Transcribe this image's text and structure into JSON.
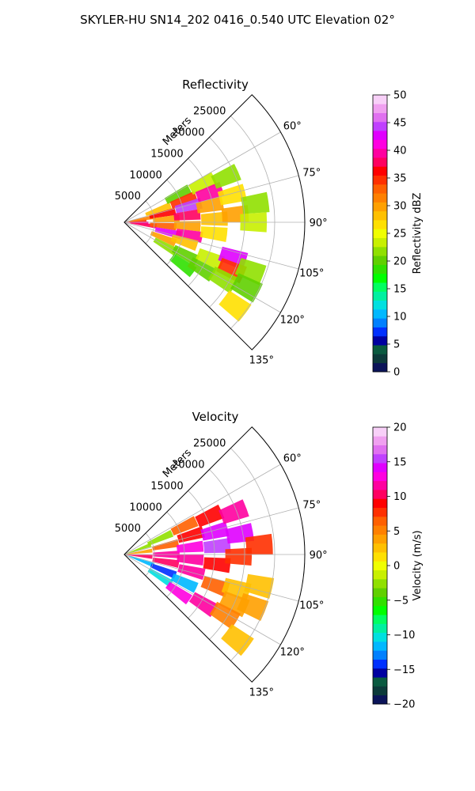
{
  "figure": {
    "title": "SKYLER-HU  SN14_202  0416_0.540 UTC Elevation 02°"
  },
  "chart_data": [
    {
      "type": "heatmap",
      "projection": "polar-sector",
      "title": "Reflectivity",
      "radial_axis_label": "Meters",
      "radial_range": [
        0,
        30000
      ],
      "radial_ticks": [
        5000,
        10000,
        15000,
        20000,
        25000
      ],
      "radial_tick_labels": [
        "5000",
        "10000",
        "15000",
        "20000",
        "25000"
      ],
      "angle_range_deg": [
        45,
        135
      ],
      "angle_ticks_deg": [
        60,
        75,
        90,
        105,
        120,
        135
      ],
      "angle_tick_labels": [
        "60°",
        "75°",
        "90°",
        "105°",
        "120°",
        "135°"
      ],
      "grid": true,
      "colorbar": {
        "label": "Reflectivity dBZ",
        "range": [
          0,
          50
        ],
        "ticks": [
          0,
          5,
          10,
          15,
          20,
          25,
          30,
          35,
          40,
          45,
          50
        ],
        "tick_labels": [
          "0",
          "5",
          "10",
          "15",
          "20",
          "25",
          "30",
          "35",
          "40",
          "45",
          "50"
        ],
        "colors": [
          "#0b1459",
          "#0c3a3a",
          "#0a5a40",
          "#0000a0",
          "#0030ff",
          "#0080ff",
          "#00b8ff",
          "#00e0e0",
          "#00f0a0",
          "#00ff60",
          "#00ff00",
          "#30e000",
          "#60d000",
          "#90e000",
          "#c8f000",
          "#f0ff00",
          "#ffe000",
          "#ffc000",
          "#ffa000",
          "#ff8000",
          "#ff6000",
          "#ff3000",
          "#ff0000",
          "#ff0060",
          "#ff00a0",
          "#ff00e0",
          "#e000ff",
          "#c040ff",
          "#e070f0",
          "#f0a0f0",
          "#f8d0f8"
        ]
      },
      "cells": [
        {
          "angle": 86,
          "range": 1500,
          "value": 35
        },
        {
          "angle": 92,
          "range": 1800,
          "value": 40
        },
        {
          "angle": 80,
          "range": 3000,
          "value": 32
        },
        {
          "angle": 97,
          "range": 3200,
          "value": 38
        },
        {
          "angle": 70,
          "range": 6000,
          "value": 28
        },
        {
          "angle": 78,
          "range": 6500,
          "value": 36
        },
        {
          "angle": 86,
          "range": 7000,
          "value": 30
        },
        {
          "angle": 95,
          "range": 6500,
          "value": 33
        },
        {
          "angle": 103,
          "range": 7500,
          "value": 42
        },
        {
          "angle": 112,
          "range": 7000,
          "value": 30
        },
        {
          "angle": 120,
          "range": 8000,
          "value": 22
        },
        {
          "angle": 63,
          "range": 10000,
          "value": 20
        },
        {
          "angle": 70,
          "range": 10500,
          "value": 34
        },
        {
          "angle": 76,
          "range": 11000,
          "value": 44
        },
        {
          "angle": 84,
          "range": 10500,
          "value": 38
        },
        {
          "angle": 93,
          "range": 10500,
          "value": 30
        },
        {
          "angle": 101,
          "range": 11000,
          "value": 40
        },
        {
          "angle": 108,
          "range": 10500,
          "value": 28
        },
        {
          "angle": 118,
          "range": 11500,
          "value": 20
        },
        {
          "angle": 126,
          "range": 12000,
          "value": 18
        },
        {
          "angle": 64,
          "range": 14500,
          "value": 24
        },
        {
          "angle": 71,
          "range": 15000,
          "value": 40
        },
        {
          "angle": 79,
          "range": 14500,
          "value": 30
        },
        {
          "angle": 88,
          "range": 15000,
          "value": 28
        },
        {
          "angle": 97,
          "range": 15000,
          "value": 26
        },
        {
          "angle": 113,
          "range": 15500,
          "value": 24
        },
        {
          "angle": 121,
          "range": 15000,
          "value": 20
        },
        {
          "angle": 66,
          "range": 18500,
          "value": 22
        },
        {
          "angle": 76,
          "range": 18500,
          "value": 26
        },
        {
          "angle": 86,
          "range": 18500,
          "value": 30
        },
        {
          "angle": 108,
          "range": 19000,
          "value": 42
        },
        {
          "angle": 114,
          "range": 19500,
          "value": 34
        },
        {
          "angle": 120,
          "range": 19000,
          "value": 22
        },
        {
          "angle": 82,
          "range": 22000,
          "value": 22
        },
        {
          "angle": 90,
          "range": 21500,
          "value": 24
        },
        {
          "angle": 111,
          "range": 22500,
          "value": 22
        },
        {
          "angle": 118,
          "range": 23000,
          "value": 20
        },
        {
          "angle": 127,
          "range": 23000,
          "value": 26
        }
      ]
    },
    {
      "type": "heatmap",
      "projection": "polar-sector",
      "title": "Velocity",
      "radial_axis_label": "Meters",
      "radial_range": [
        0,
        30000
      ],
      "radial_ticks": [
        5000,
        10000,
        15000,
        20000,
        25000
      ],
      "radial_tick_labels": [
        "5000",
        "10000",
        "15000",
        "20000",
        "25000"
      ],
      "angle_range_deg": [
        45,
        135
      ],
      "angle_ticks_deg": [
        60,
        75,
        90,
        105,
        120,
        135
      ],
      "angle_tick_labels": [
        "60°",
        "75°",
        "90°",
        "105°",
        "120°",
        "135°"
      ],
      "grid": true,
      "colorbar": {
        "label": "Velocity (m/s)",
        "range": [
          -20,
          20
        ],
        "ticks": [
          -20,
          -15,
          -10,
          -5,
          0,
          5,
          10,
          15,
          20
        ],
        "tick_labels": [
          "−20",
          "−15",
          "−10",
          "−5",
          "0",
          "5",
          "10",
          "15",
          "20"
        ],
        "colors": [
          "#0b1459",
          "#0c3a3a",
          "#0a5a40",
          "#0000a0",
          "#0030ff",
          "#0080ff",
          "#00b8ff",
          "#00e0e0",
          "#00f0a0",
          "#00ff60",
          "#00ff00",
          "#30e000",
          "#60d000",
          "#90e000",
          "#c8f000",
          "#f0ff00",
          "#ffe000",
          "#ffc000",
          "#ffa000",
          "#ff8000",
          "#ff6000",
          "#ff3000",
          "#ff0000",
          "#ff0060",
          "#ff00a0",
          "#ff00e0",
          "#e000ff",
          "#c040ff",
          "#e070f0",
          "#f0a0f0",
          "#f8d0f8"
        ]
      },
      "cells": [
        {
          "angle": 70,
          "range": 2500,
          "value": -2
        },
        {
          "angle": 82,
          "range": 2500,
          "value": 4
        },
        {
          "angle": 95,
          "range": 2500,
          "value": 10
        },
        {
          "angle": 110,
          "range": 3000,
          "value": -12
        },
        {
          "angle": 66,
          "range": 6500,
          "value": -3
        },
        {
          "angle": 78,
          "range": 7000,
          "value": 6
        },
        {
          "angle": 90,
          "range": 7000,
          "value": 11
        },
        {
          "angle": 100,
          "range": 7000,
          "value": 10
        },
        {
          "angle": 112,
          "range": 7000,
          "value": -14
        },
        {
          "angle": 122,
          "range": 7000,
          "value": -10
        },
        {
          "angle": 65,
          "range": 11000,
          "value": 7
        },
        {
          "angle": 74,
          "range": 11500,
          "value": 9
        },
        {
          "angle": 84,
          "range": 11000,
          "value": 13
        },
        {
          "angle": 94,
          "range": 11000,
          "value": 12
        },
        {
          "angle": 104,
          "range": 11500,
          "value": 11
        },
        {
          "angle": 115,
          "range": 11000,
          "value": -12
        },
        {
          "angle": 125,
          "range": 11000,
          "value": 13
        },
        {
          "angle": 66,
          "range": 15500,
          "value": 9
        },
        {
          "angle": 76,
          "range": 15500,
          "value": 14
        },
        {
          "angle": 85,
          "range": 15500,
          "value": 15
        },
        {
          "angle": 96,
          "range": 15500,
          "value": 9
        },
        {
          "angle": 109,
          "range": 16000,
          "value": 6
        },
        {
          "angle": 122,
          "range": 15500,
          "value": 11
        },
        {
          "angle": 69,
          "range": 19500,
          "value": 12
        },
        {
          "angle": 80,
          "range": 19500,
          "value": 14
        },
        {
          "angle": 91,
          "range": 19000,
          "value": 8
        },
        {
          "angle": 107,
          "range": 19500,
          "value": 3
        },
        {
          "angle": 114,
          "range": 20000,
          "value": 4
        },
        {
          "angle": 121,
          "range": 19500,
          "value": 5
        },
        {
          "angle": 86,
          "range": 22500,
          "value": 8
        },
        {
          "angle": 103,
          "range": 23000,
          "value": 3
        },
        {
          "angle": 112,
          "range": 23000,
          "value": 4
        },
        {
          "angle": 127,
          "range": 23500,
          "value": 2
        }
      ]
    }
  ]
}
